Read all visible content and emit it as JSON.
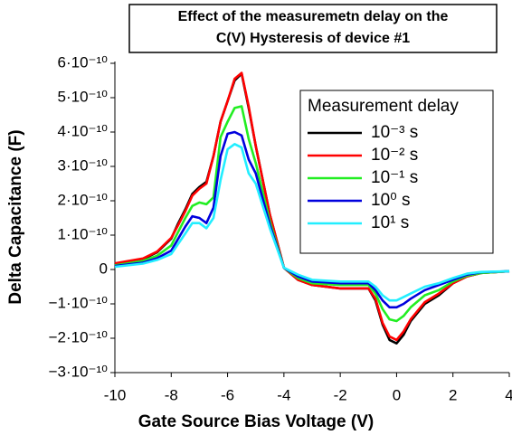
{
  "chart_data": {
    "type": "line",
    "title": [
      "Effect of the measuremetn delay on the",
      "C(V) Hysteresis of device #1"
    ],
    "xlabel": "Gate Source Bias Voltage (V)",
    "ylabel": "Delta Capacitance (F)",
    "legend_title": "Measurement delay",
    "legend": "upper right",
    "x": [
      -10,
      -9,
      -8.5,
      -8,
      -7.75,
      -7.5,
      -7.25,
      -7,
      -6.75,
      -6.5,
      -6.25,
      -6,
      -5.75,
      -5.5,
      -5.25,
      -5,
      -4.5,
      -4,
      -3.5,
      -3,
      -2,
      -1,
      -0.75,
      -0.5,
      -0.25,
      0,
      0.25,
      0.5,
      1,
      1.5,
      2,
      2.5,
      3,
      4
    ],
    "series": [
      {
        "name": "10⁻³ s",
        "color": "#000000",
        "values": [
          1.6e-11,
          3e-11,
          5e-11,
          9e-11,
          1.35e-10,
          1.75e-10,
          2.2e-10,
          2.4e-10,
          2.55e-10,
          3.3e-10,
          4.3e-10,
          4.9e-10,
          5.5e-10,
          5.7e-10,
          4.7e-10,
          3.6e-10,
          1.6e-10,
          5e-12,
          -3e-11,
          -4.5e-11,
          -5.5e-11,
          -5.5e-11,
          -9e-11,
          -1.6e-10,
          -2.05e-10,
          -2.15e-10,
          -1.9e-10,
          -1.5e-10,
          -1e-10,
          -7.5e-11,
          -4e-11,
          -2e-11,
          -1e-11,
          -5e-12
        ]
      },
      {
        "name": "10⁻² s",
        "color": "#ff0000",
        "values": [
          1.8e-11,
          3.2e-11,
          5.2e-11,
          9.2e-11,
          1.3e-10,
          1.7e-10,
          2.15e-10,
          2.35e-10,
          2.5e-10,
          3.3e-10,
          4.3e-10,
          4.9e-10,
          5.55e-10,
          5.72e-10,
          4.75e-10,
          3.6e-10,
          1.6e-10,
          5e-12,
          -3e-11,
          -4.5e-11,
          -5.5e-11,
          -5.5e-11,
          -8.5e-11,
          -1.55e-10,
          -1.95e-10,
          -2.05e-10,
          -1.8e-10,
          -1.45e-10,
          -9.5e-11,
          -7e-11,
          -4e-11,
          -2e-11,
          -1e-11,
          -5e-12
        ]
      },
      {
        "name": "10⁻¹ s",
        "color": "#22ee22",
        "values": [
          1.2e-11,
          2.5e-11,
          4e-11,
          7e-11,
          1.1e-10,
          1.5e-10,
          1.85e-10,
          1.95e-10,
          1.9e-10,
          2.1e-10,
          3.85e-10,
          4.3e-10,
          4.7e-10,
          4.75e-10,
          3.8e-10,
          3.1e-10,
          1.4e-10,
          5e-12,
          -2.5e-11,
          -4e-11,
          -4.5e-11,
          -4.5e-11,
          -7e-11,
          -1.15e-10,
          -1.45e-10,
          -1.5e-10,
          -1.35e-10,
          -1.1e-10,
          -7.5e-11,
          -6e-11,
          -3.5e-11,
          -1.8e-11,
          -1e-11,
          -5e-12
        ]
      },
      {
        "name": "10⁰ s",
        "color": "#0000dd",
        "values": [
          1e-11,
          2e-11,
          3.3e-11,
          5.5e-11,
          9e-11,
          1.25e-10,
          1.55e-10,
          1.5e-10,
          1.35e-10,
          1.8e-10,
          3.3e-10,
          3.95e-10,
          4e-10,
          3.9e-10,
          3.2e-10,
          2.8e-10,
          1.3e-10,
          5e-12,
          -2e-11,
          -3.5e-11,
          -4e-11,
          -4e-11,
          -6e-11,
          -9e-11,
          -1.1e-10,
          -1.1e-10,
          -1e-10,
          -8.5e-11,
          -6e-11,
          -4.5e-11,
          -3e-11,
          -1.5e-11,
          -8e-12,
          -5e-12
        ]
      },
      {
        "name": "10¹ s",
        "color": "#22eeff",
        "values": [
          8e-12,
          1.7e-11,
          2.8e-11,
          4.5e-11,
          7.5e-11,
          1.05e-10,
          1.35e-10,
          1.35e-10,
          1.2e-10,
          1.5e-10,
          2.6e-10,
          3.5e-10,
          3.65e-10,
          3.55e-10,
          2.8e-10,
          2.5e-10,
          1.2e-10,
          5e-12,
          -1.5e-11,
          -3e-11,
          -3.5e-11,
          -3.5e-11,
          -5e-11,
          -7.5e-11,
          -9e-11,
          -9e-11,
          -8e-11,
          -7e-11,
          -5e-11,
          -4e-11,
          -2.5e-11,
          -1.2e-11,
          -7e-12,
          -5e-12
        ]
      }
    ],
    "xlim": [
      -10,
      4
    ],
    "xticks": [
      -10,
      -8,
      -6,
      -4,
      -2,
      0,
      2,
      4
    ],
    "ylim": [
      -3e-10,
      6e-10
    ],
    "yticks": [
      {
        "value": -3e-10,
        "label": "−3·10⁻¹⁰"
      },
      {
        "value": -2e-10,
        "label": "−2·10⁻¹⁰"
      },
      {
        "value": -1e-10,
        "label": "−1·10⁻¹⁰"
      },
      0,
      {
        "value": 1e-10,
        "label": "1·10⁻¹⁰"
      },
      {
        "value": 2e-10,
        "label": "2·10⁻¹⁰"
      },
      {
        "value": 3e-10,
        "label": "3·10⁻¹⁰"
      },
      {
        "value": 4e-10,
        "label": "4·10⁻¹⁰"
      },
      {
        "value": 5e-10,
        "label": "5·10⁻¹⁰"
      },
      {
        "value": 6e-10,
        "label": "6·10⁻¹⁰"
      }
    ],
    "grid": false
  }
}
